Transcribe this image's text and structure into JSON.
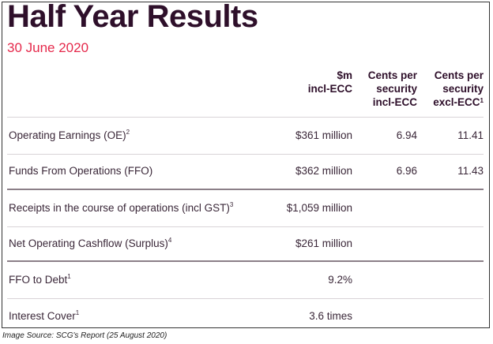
{
  "title": "Half Year Results",
  "subtitle": "30 June 2020",
  "columns": [
    {
      "line1": "$m",
      "line2": "incl-ECC",
      "line3": ""
    },
    {
      "line1": "Cents per",
      "line2": "security",
      "line3": "incl-ECC"
    },
    {
      "line1": "Cents per",
      "line2": "security",
      "line3": "excl-ECC",
      "sup": "1"
    }
  ],
  "rows": [
    {
      "label": "Operating Earnings (OE)",
      "sup": "2",
      "amount": "$361 million",
      "cents_incl": "6.94",
      "cents_excl": "11.41"
    },
    {
      "label": "Funds From Operations (FFO)",
      "sup": "",
      "amount": "$362 million",
      "cents_incl": "6.96",
      "cents_excl": "11.43"
    },
    {
      "label": "Receipts in the course of operations (incl GST)",
      "sup": "3",
      "amount": "$1,059 million",
      "cents_incl": "",
      "cents_excl": ""
    },
    {
      "label": "Net Operating Cashflow (Surplus)",
      "sup": "4",
      "amount": "$261 million",
      "cents_incl": "",
      "cents_excl": ""
    },
    {
      "label": "FFO to Debt",
      "sup": "1",
      "amount": "9.2%",
      "cents_incl": "",
      "cents_excl": ""
    },
    {
      "label": "Interest Cover",
      "sup": "1",
      "amount": "3.6 times",
      "cents_incl": "",
      "cents_excl": ""
    }
  ],
  "caption": "Image Source: SCG's Report (25 August 2020)",
  "colors": {
    "title": "#2e0f2a",
    "subtitle": "#e5294b",
    "text": "#3a2738",
    "thick_rule": "#8b7f88",
    "thin_rule": "#d8d3d7"
  }
}
